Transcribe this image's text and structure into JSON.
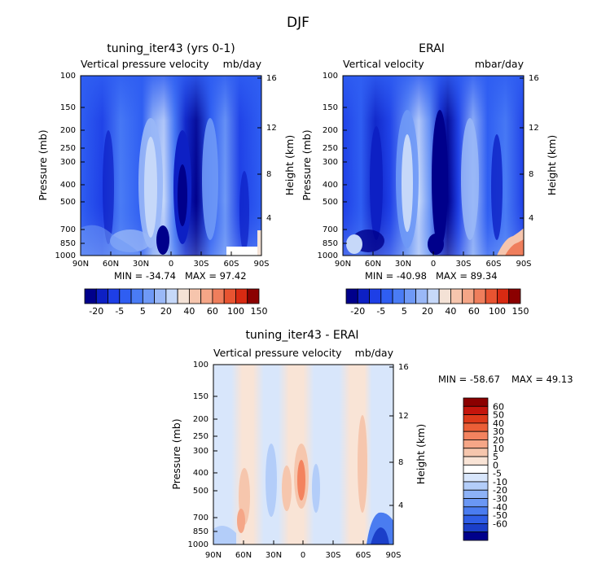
{
  "figure": {
    "title": "DJF"
  },
  "chart_data": [
    {
      "type": "heatmap",
      "title": "tuning_iter43 (yrs 0-1)",
      "subtitle_left": "Vertical pressure velocity",
      "subtitle_right": "mb/day",
      "xlabel": "",
      "ylabel": "Pressure (mb)",
      "y2label": "Height (km)",
      "x_ticks": [
        "90N",
        "60N",
        "30N",
        "0",
        "30S",
        "60S",
        "90S"
      ],
      "y_ticks": [
        "100",
        "150",
        "200",
        "250",
        "300",
        "400",
        "500",
        "700",
        "850",
        "1000"
      ],
      "y2_ticks": [
        "16",
        "12",
        "8",
        "4"
      ],
      "stats": {
        "min": "MIN = -34.74",
        "max": "MAX =  97.42"
      },
      "colorbar": {
        "orientation": "horizontal",
        "labels": [
          "-20",
          "-5",
          "5",
          "20",
          "40",
          "60",
          "100",
          "150"
        ],
        "colors": [
          "#00008b",
          "#0d20c4",
          "#1e3fe6",
          "#2f5ef2",
          "#4a7cf5",
          "#6f99f6",
          "#9ab8f7",
          "#c6d8f9",
          "#f4e2d6",
          "#f6c5ad",
          "#f5a687",
          "#ef7e5c",
          "#e85431",
          "#d82a12",
          "#8b0000"
        ]
      }
    },
    {
      "type": "heatmap",
      "title": "ERAI",
      "subtitle_left": "Vertical velocity",
      "subtitle_right": "mbar/day",
      "xlabel": "",
      "ylabel": "Pressure (mb)",
      "y2label": "Height (km)",
      "x_ticks": [
        "90N",
        "60N",
        "30N",
        "0",
        "30S",
        "60S",
        "90S"
      ],
      "y_ticks": [
        "100",
        "150",
        "200",
        "250",
        "300",
        "400",
        "500",
        "700",
        "850",
        "1000"
      ],
      "y2_ticks": [
        "16",
        "12",
        "8",
        "4"
      ],
      "stats": {
        "min": "MIN = -40.98",
        "max": "MAX =  89.34"
      },
      "colorbar": {
        "orientation": "horizontal",
        "labels": [
          "-20",
          "-5",
          "5",
          "20",
          "40",
          "60",
          "100",
          "150"
        ],
        "colors": [
          "#00008b",
          "#0d20c4",
          "#1e3fe6",
          "#2f5ef2",
          "#4a7cf5",
          "#6f99f6",
          "#9ab8f7",
          "#c6d8f9",
          "#f4e2d6",
          "#f6c5ad",
          "#f5a687",
          "#ef7e5c",
          "#e85431",
          "#d82a12",
          "#8b0000"
        ]
      }
    },
    {
      "type": "heatmap",
      "title": "tuning_iter43 - ERAI",
      "subtitle_left": "Vertical pressure velocity",
      "subtitle_right": "mb/day",
      "xlabel": "",
      "ylabel": "Pressure (mb)",
      "y2label": "Height (km)",
      "x_ticks": [
        "90N",
        "60N",
        "30N",
        "0",
        "30S",
        "60S",
        "90S"
      ],
      "y_ticks": [
        "100",
        "150",
        "200",
        "250",
        "300",
        "400",
        "500",
        "700",
        "850",
        "1000"
      ],
      "y2_ticks": [
        "16",
        "12",
        "8",
        "4"
      ],
      "stats": {
        "min": "MIN = -58.67",
        "max": "MAX =  49.13"
      },
      "colorbar": {
        "orientation": "vertical",
        "labels": [
          "60",
          "50",
          "40",
          "30",
          "20",
          "10",
          "5",
          "0",
          "-5",
          "-10",
          "-20",
          "-30",
          "-40",
          "-50",
          "-60"
        ],
        "colors": [
          "#8b0000",
          "#c4150c",
          "#dd3a1a",
          "#eb5f37",
          "#f3835f",
          "#f5a687",
          "#f6c6ad",
          "#f9e4d6",
          "#ffffff",
          "#d8e6fb",
          "#b3cdf9",
          "#8db2f7",
          "#6a97f4",
          "#4a7cf0",
          "#2f5ee6",
          "#1b3fc9",
          "#00008b"
        ]
      }
    }
  ]
}
